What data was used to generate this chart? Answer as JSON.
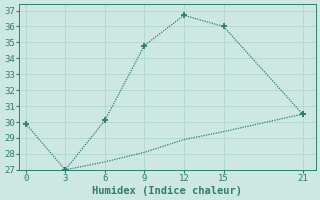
{
  "line1_x": [
    0,
    3,
    6,
    9,
    12,
    15,
    21
  ],
  "line1_y": [
    29.9,
    27.0,
    30.1,
    34.8,
    36.7,
    36.0,
    30.5
  ],
  "line2_x": [
    3,
    6,
    9,
    12,
    15,
    21
  ],
  "line2_y": [
    27.0,
    27.5,
    28.1,
    28.9,
    29.4,
    30.5
  ],
  "marker_x": [
    0,
    3,
    6,
    9,
    12,
    15,
    21
  ],
  "marker_y": [
    29.9,
    27.0,
    30.1,
    34.8,
    36.7,
    36.0,
    30.5
  ],
  "color": "#2e7d6e",
  "bg_color": "#cde8e3",
  "grid_color": "#b0d5cf",
  "xlabel": "Humidex (Indice chaleur)",
  "xlim": [
    -0.5,
    22
  ],
  "ylim": [
    27,
    37.4
  ],
  "xticks": [
    0,
    3,
    6,
    9,
    12,
    15,
    21
  ],
  "yticks": [
    27,
    28,
    29,
    30,
    31,
    32,
    33,
    34,
    35,
    36,
    37
  ],
  "label_fontsize": 7.5
}
